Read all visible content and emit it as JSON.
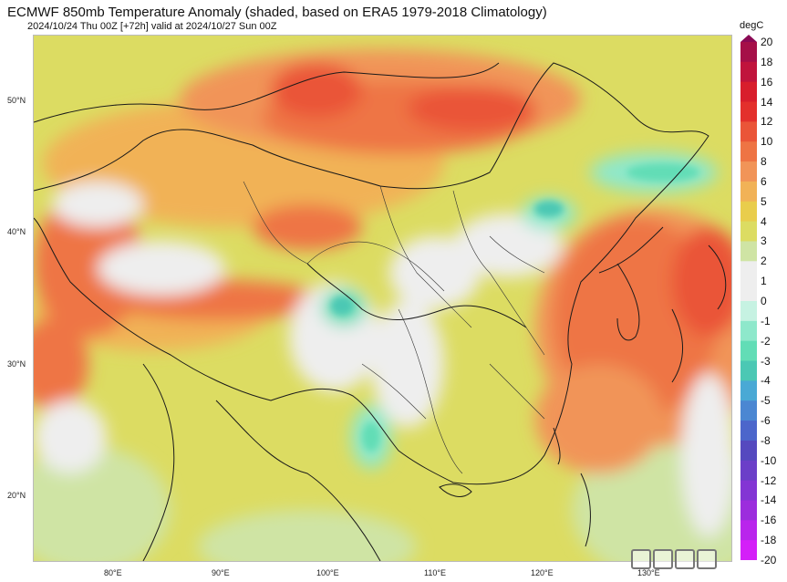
{
  "header": {
    "title": "ECMWF 850mb Temperature Anomaly (shaded, based on ERA5 1979-2018 Climatology)",
    "subtitle": "2024/10/24 Thu 00Z [+72h] valid at 2024/10/27 Sun 00Z"
  },
  "map": {
    "latitude_labels": [
      "50°N",
      "40°N",
      "30°N",
      "20°N"
    ],
    "longitude_labels": [
      "80°E",
      "90°E",
      "100°E",
      "110°E",
      "120°E",
      "130°E"
    ]
  },
  "colorbar": {
    "unit": "degC",
    "levels": [
      "20",
      "18",
      "16",
      "14",
      "12",
      "10",
      "8",
      "6",
      "5",
      "4",
      "3",
      "2",
      "1",
      "0",
      "-1",
      "-2",
      "-3",
      "-4",
      "-5",
      "-6",
      "-8",
      "-10",
      "-12",
      "-14",
      "-16",
      "-18",
      "-20"
    ],
    "colors": [
      "#8a0a55",
      "#a50f48",
      "#c0143c",
      "#d81e2c",
      "#e3302c",
      "#ea5538",
      "#ee7444",
      "#f19458",
      "#f1b257",
      "#e9cd4c",
      "#dcdc62",
      "#cfe4a4",
      "#eeeeee",
      "#eeeeee",
      "#c6f2e2",
      "#8ee8cb",
      "#62ddb6",
      "#4bc8b4",
      "#4aa9d5",
      "#4b87d2",
      "#4c66cb",
      "#5549bf",
      "#6b3fc8",
      "#8335d4",
      "#9c2ddd",
      "#b925ec",
      "#d41ff8"
    ]
  },
  "watermark": {
    "icon": "square-boxes-watermark"
  }
}
